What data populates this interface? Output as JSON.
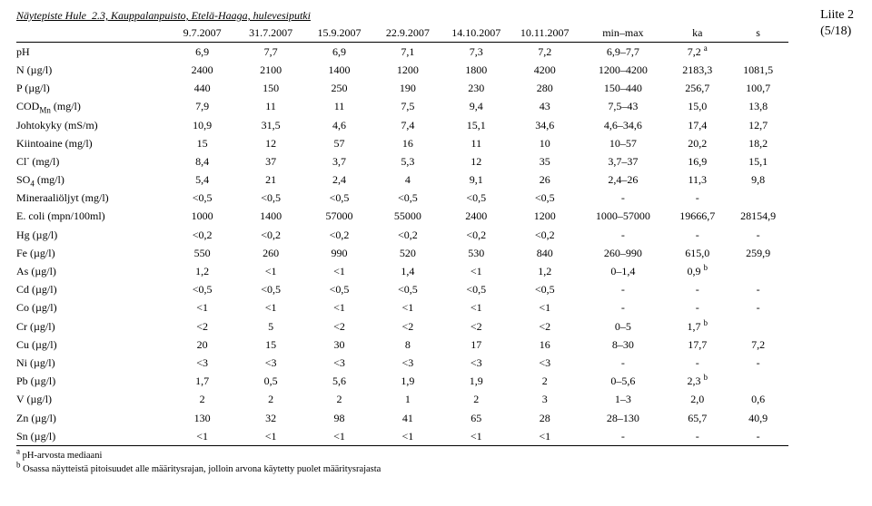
{
  "liite": {
    "line1": "Liite 2",
    "line2": "(5/18)"
  },
  "title": "Näytepiste Hule_2.3, Kauppalanpuisto, Etelä-Haaga, hulevesiputki",
  "columns": {
    "dates": [
      "9.7.2007",
      "31.7.2007",
      "15.9.2007",
      "22.9.2007",
      "14.10.2007",
      "10.11.2007"
    ],
    "minmax": "min–max",
    "ka": "ka",
    "s": "s"
  },
  "rows": [
    {
      "param_html": "pH",
      "v": [
        "6,9",
        "7,7",
        "6,9",
        "7,1",
        "7,3",
        "7,2"
      ],
      "mm": "6,9–7,7",
      "ka_html": "7,2 <span class=\"sup\">a</span>",
      "s": ""
    },
    {
      "param_html": "N (µg/l)",
      "v": [
        "2400",
        "2100",
        "1400",
        "1200",
        "1800",
        "4200"
      ],
      "mm": "1200–4200",
      "ka_html": "2183,3",
      "s": "1081,5"
    },
    {
      "param_html": "P (µg/l)",
      "v": [
        "440",
        "150",
        "250",
        "190",
        "230",
        "280"
      ],
      "mm": "150–440",
      "ka_html": "256,7",
      "s": "100,7"
    },
    {
      "param_html": "COD<span class=\"sub\">Mn</span> (mg/l)",
      "v": [
        "7,9",
        "11",
        "11",
        "7,5",
        "9,4",
        "43"
      ],
      "mm": "7,5–43",
      "ka_html": "15,0",
      "s": "13,8"
    },
    {
      "param_html": "Johtokyky (mS/m)",
      "v": [
        "10,9",
        "31,5",
        "4,6",
        "7,4",
        "15,1",
        "34,6"
      ],
      "mm": "4,6–34,6",
      "ka_html": "17,4",
      "s": "12,7"
    },
    {
      "param_html": "Kiintoaine (mg/l)",
      "v": [
        "15",
        "12",
        "57",
        "16",
        "11",
        "10"
      ],
      "mm": "10–57",
      "ka_html": "20,2",
      "s": "18,2"
    },
    {
      "param_html": "Cl<span class=\"sup\">-</span> (mg/l)",
      "v": [
        "8,4",
        "37",
        "3,7",
        "5,3",
        "12",
        "35"
      ],
      "mm": "3,7–37",
      "ka_html": "16,9",
      "s": "15,1"
    },
    {
      "param_html": "SO<span class=\"sub\">4</span> (mg/l)",
      "v": [
        "5,4",
        "21",
        "2,4",
        "4",
        "9,1",
        "26"
      ],
      "mm": "2,4–26",
      "ka_html": "11,3",
      "s": "9,8"
    },
    {
      "param_html": "Mineraaliöljyt (mg/l)",
      "v": [
        "<0,5",
        "<0,5",
        "<0,5",
        "<0,5",
        "<0,5",
        "<0,5"
      ],
      "mm": "-",
      "ka_html": "-",
      "s": ""
    },
    {
      "param_html": "E. coli (mpn/100ml)",
      "v": [
        "1000",
        "1400",
        "57000",
        "55000",
        "2400",
        "1200"
      ],
      "mm": "1000–57000",
      "ka_html": "19666,7",
      "s": "28154,9"
    },
    {
      "param_html": "Hg (µg/l)",
      "v": [
        "<0,2",
        "<0,2",
        "<0,2",
        "<0,2",
        "<0,2",
        "<0,2"
      ],
      "mm": "-",
      "ka_html": "-",
      "s": "-"
    },
    {
      "param_html": "Fe (µg/l)",
      "v": [
        "550",
        "260",
        "990",
        "520",
        "530",
        "840"
      ],
      "mm": "260–990",
      "ka_html": "615,0",
      "s": "259,9"
    },
    {
      "param_html": "As (µg/l)",
      "v": [
        "1,2",
        "<1",
        "<1",
        "1,4",
        "<1",
        "1,2"
      ],
      "mm": "0–1,4",
      "ka_html": "0,9 <span class=\"sup\">b</span>",
      "s": ""
    },
    {
      "param_html": "Cd (µg/l)",
      "v": [
        "<0,5",
        "<0,5",
        "<0,5",
        "<0,5",
        "<0,5",
        "<0,5"
      ],
      "mm": "-",
      "ka_html": "-",
      "s": "-"
    },
    {
      "param_html": "Co (µg/l)",
      "v": [
        "<1",
        "<1",
        "<1",
        "<1",
        "<1",
        "<1"
      ],
      "mm": "-",
      "ka_html": "-",
      "s": "-"
    },
    {
      "param_html": "Cr (µg/l)",
      "v": [
        "<2",
        "5",
        "<2",
        "<2",
        "<2",
        "<2"
      ],
      "mm": "0–5",
      "ka_html": "1,7 <span class=\"sup\">b</span>",
      "s": ""
    },
    {
      "param_html": "Cu (µg/l)",
      "v": [
        "20",
        "15",
        "30",
        "8",
        "17",
        "16"
      ],
      "mm": "8–30",
      "ka_html": "17,7",
      "s": "7,2"
    },
    {
      "param_html": "Ni (µg/l)",
      "v": [
        "<3",
        "<3",
        "<3",
        "<3",
        "<3",
        "<3"
      ],
      "mm": "-",
      "ka_html": "-",
      "s": "-"
    },
    {
      "param_html": "Pb (µg/l)",
      "v": [
        "1,7",
        "0,5",
        "5,6",
        "1,9",
        "1,9",
        "2"
      ],
      "mm": "0–5,6",
      "ka_html": "2,3 <span class=\"sup\">b</span>",
      "s": ""
    },
    {
      "param_html": "V (µg/l)",
      "v": [
        "2",
        "2",
        "2",
        "1",
        "2",
        "3"
      ],
      "mm": "1–3",
      "ka_html": "2,0",
      "s": "0,6"
    },
    {
      "param_html": "Zn (µg/l)",
      "v": [
        "130",
        "32",
        "98",
        "41",
        "65",
        "28"
      ],
      "mm": "28–130",
      "ka_html": "65,7",
      "s": "40,9"
    },
    {
      "param_html": "Sn (µg/l)",
      "v": [
        "<1",
        "<1",
        "<1",
        "<1",
        "<1",
        "<1"
      ],
      "mm": "-",
      "ka_html": "-",
      "s": "-"
    }
  ],
  "notes": {
    "a": "pH-arvosta mediaani",
    "b": "Osassa näytteistä pitoisuudet alle määritysrajan, jolloin arvona käytetty puolet määritysrajasta"
  }
}
